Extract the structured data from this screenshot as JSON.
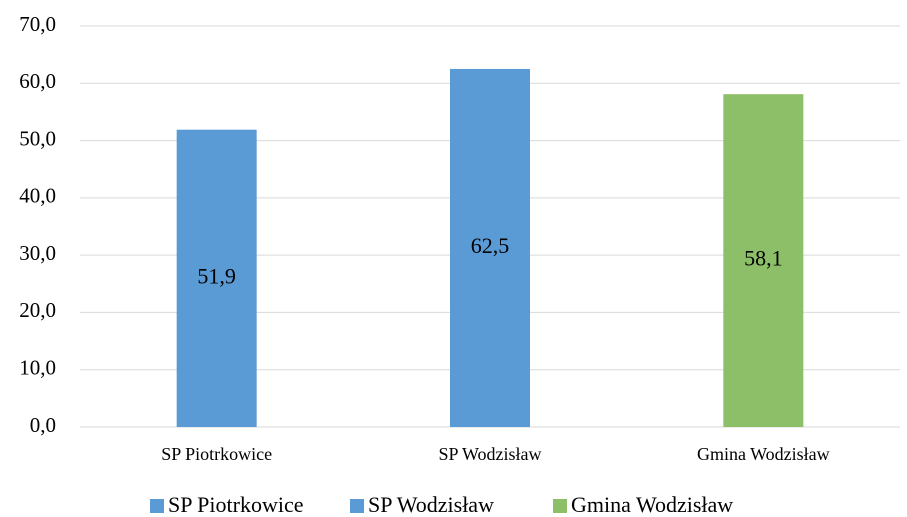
{
  "chart_data": {
    "type": "bar",
    "categories": [
      "SP Piotrkowice",
      "SP Wodzisław",
      "Gmina Wodzisław"
    ],
    "series": [
      {
        "name": "SP Piotrkowice",
        "color": "#5b9bd5",
        "values": [
          51.9,
          null,
          null
        ],
        "value_labels": [
          "51,9",
          null,
          null
        ]
      },
      {
        "name": "SP Wodzisław",
        "color": "#5b9bd5",
        "values": [
          null,
          62.5,
          null
        ],
        "value_labels": [
          null,
          "62,5",
          null
        ]
      },
      {
        "name": "Gmina Wodzisław",
        "color": "#8cbf67",
        "values": [
          null,
          null,
          58.1
        ],
        "value_labels": [
          null,
          null,
          "58,1"
        ]
      }
    ],
    "ylim": [
      0,
      70
    ],
    "yticks": [
      {
        "value": 0,
        "label": "0,0"
      },
      {
        "value": 10,
        "label": "10,0"
      },
      {
        "value": 20,
        "label": "20,0"
      },
      {
        "value": 30,
        "label": "30,0"
      },
      {
        "value": 40,
        "label": "40,0"
      },
      {
        "value": 50,
        "label": "50,0"
      },
      {
        "value": 60,
        "label": "60,0"
      },
      {
        "value": 70,
        "label": "70,0"
      }
    ],
    "grid": true,
    "legend": "bottom"
  }
}
